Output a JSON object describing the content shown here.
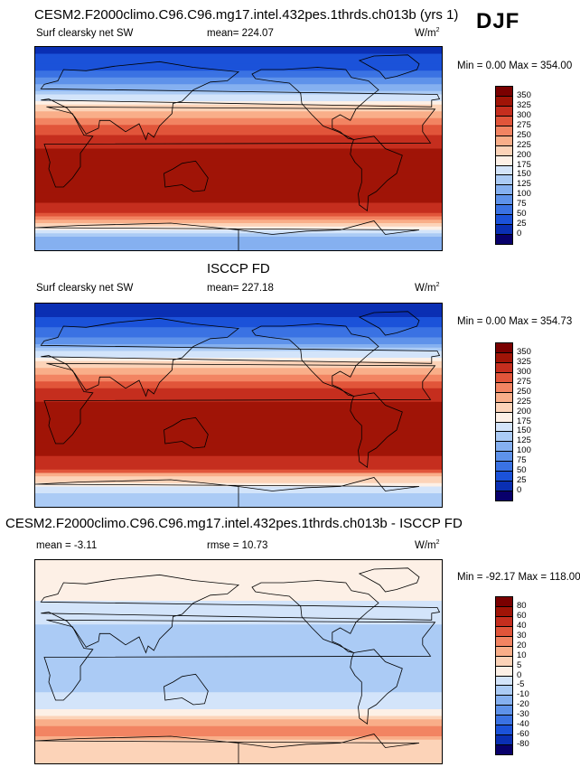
{
  "season": "DJF",
  "panels": [
    {
      "id": "model",
      "title": "CESM2.F2000climo.C96.C96.mg17.intel.432pes.1thrds.ch013b (yrs 1)",
      "variable": "Surf clearsky net SW",
      "mean_text": "mean= 224.07",
      "units_base": "W/m",
      "units_exp": "2",
      "minmax_text": "Min =   0.00 Max = 354.00"
    },
    {
      "id": "obs",
      "title": "ISCCP FD",
      "variable": "Surf clearsky net SW",
      "mean_text": "mean= 227.18",
      "units_base": "W/m",
      "units_exp": "2",
      "minmax_text": "Min =   0.00 Max = 354.73"
    },
    {
      "id": "diff",
      "title": "CESM2.F2000climo.C96.C96.mg17.intel.432pes.1thrds.ch013b - ISCCP FD",
      "mean_text": "mean =  -3.11",
      "rmse_text": "rmse =  10.73",
      "units_base": "W/m",
      "units_exp": "2",
      "minmax_text": "Min = -92.17 Max = 118.00"
    }
  ],
  "chart_data": [
    {
      "type": "heatmap",
      "title": "CESM2.F2000climo.C96.C96.mg17.intel.432pes.1thrds.ch013b (yrs 1)",
      "variable": "Surf clearsky net SW",
      "units": "W/m2",
      "mean": 224.07,
      "min": 0.0,
      "max": 354.0,
      "colorbar_levels": [
        0,
        25,
        50,
        75,
        100,
        125,
        150,
        175,
        200,
        225,
        250,
        275,
        300,
        325,
        350
      ],
      "colorbar_colors": [
        "#08006b",
        "#0a2fb3",
        "#1b52d9",
        "#3a72e3",
        "#5e92ea",
        "#85b0f0",
        "#abcbf5",
        "#d3e4fa",
        "#fdf0e6",
        "#fcd3b8",
        "#f9ae89",
        "#f28462",
        "#e1553a",
        "#c52e1e",
        "#a01407",
        "#7a0000"
      ],
      "zonal_profile": [
        {
          "lat": 85,
          "value": 20
        },
        {
          "lat": 70,
          "value": 50
        },
        {
          "lat": 55,
          "value": 110
        },
        {
          "lat": 45,
          "value": 165
        },
        {
          "lat": 35,
          "value": 215
        },
        {
          "lat": 25,
          "value": 260
        },
        {
          "lat": 15,
          "value": 295
        },
        {
          "lat": 0,
          "value": 325
        },
        {
          "lat": -20,
          "value": 345
        },
        {
          "lat": -40,
          "value": 340
        },
        {
          "lat": -55,
          "value": 310
        },
        {
          "lat": -65,
          "value": 230
        },
        {
          "lat": -80,
          "value": 120
        }
      ]
    },
    {
      "type": "heatmap",
      "title": "ISCCP FD",
      "variable": "Surf clearsky net SW",
      "units": "W/m2",
      "mean": 227.18,
      "min": 0.0,
      "max": 354.73,
      "colorbar_levels": [
        0,
        25,
        50,
        75,
        100,
        125,
        150,
        175,
        200,
        225,
        250,
        275,
        300,
        325,
        350
      ],
      "colorbar_colors": [
        "#08006b",
        "#0a2fb3",
        "#1b52d9",
        "#3a72e3",
        "#5e92ea",
        "#85b0f0",
        "#abcbf5",
        "#d3e4fa",
        "#fdf0e6",
        "#fcd3b8",
        "#f9ae89",
        "#f28462",
        "#e1553a",
        "#c52e1e",
        "#a01407",
        "#7a0000"
      ],
      "zonal_profile": [
        {
          "lat": 85,
          "value": 10
        },
        {
          "lat": 70,
          "value": 40
        },
        {
          "lat": 55,
          "value": 100
        },
        {
          "lat": 45,
          "value": 160
        },
        {
          "lat": 35,
          "value": 215
        },
        {
          "lat": 25,
          "value": 265
        },
        {
          "lat": 15,
          "value": 300
        },
        {
          "lat": 0,
          "value": 330
        },
        {
          "lat": -20,
          "value": 345
        },
        {
          "lat": -40,
          "value": 340
        },
        {
          "lat": -55,
          "value": 305
        },
        {
          "lat": -65,
          "value": 220
        },
        {
          "lat": -80,
          "value": 130
        }
      ]
    },
    {
      "type": "heatmap",
      "title": "CESM2.F2000climo.C96.C96.mg17.intel.432pes.1thrds.ch013b - ISCCP FD",
      "units": "W/m2",
      "mean": -3.11,
      "rmse": 10.73,
      "min": -92.17,
      "max": 118.0,
      "colorbar_levels": [
        -80,
        -60,
        -40,
        -30,
        -20,
        -10,
        -5,
        0,
        5,
        10,
        20,
        30,
        40,
        60,
        80
      ],
      "colorbar_colors": [
        "#08006b",
        "#0a2fb3",
        "#1b52d9",
        "#3a72e3",
        "#5e92ea",
        "#85b0f0",
        "#abcbf5",
        "#d3e4fa",
        "#fdf0e6",
        "#fcd3b8",
        "#f9ae89",
        "#f28462",
        "#e1553a",
        "#c52e1e",
        "#a01407",
        "#7a0000"
      ],
      "zonal_profile": [
        {
          "lat": 85,
          "value": 3
        },
        {
          "lat": 70,
          "value": 2
        },
        {
          "lat": 55,
          "value": 0
        },
        {
          "lat": 40,
          "value": -4
        },
        {
          "lat": 20,
          "value": -7
        },
        {
          "lat": 0,
          "value": -8
        },
        {
          "lat": -20,
          "value": -6
        },
        {
          "lat": -40,
          "value": -3
        },
        {
          "lat": -55,
          "value": 15
        },
        {
          "lat": -62,
          "value": 30
        },
        {
          "lat": -70,
          "value": 8
        },
        {
          "lat": -80,
          "value": 5
        }
      ]
    }
  ]
}
